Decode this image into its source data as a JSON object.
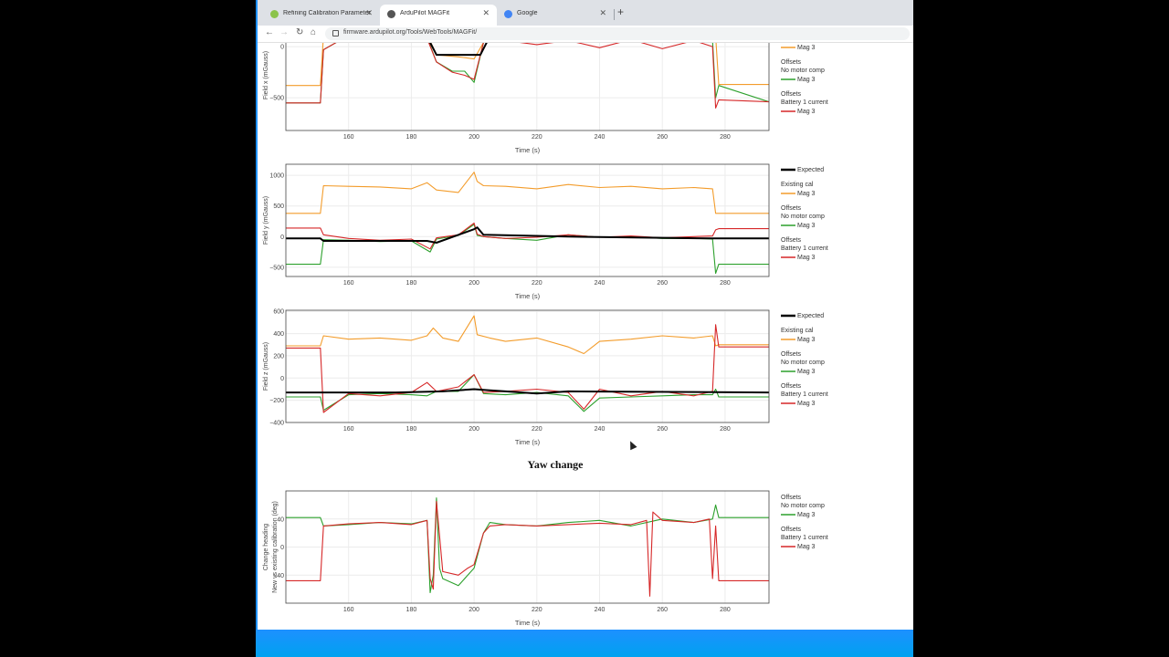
{
  "browser": {
    "tabs": [
      {
        "title": "Refining Calibration Parameters",
        "active": false,
        "favicon": "ardupilot-icon",
        "favicon_color": "#8bc34a"
      },
      {
        "title": "ArduPilot MAGFit",
        "active": true,
        "favicon": "ardupilot-icon",
        "favicon_color": "#555555"
      },
      {
        "title": "Google",
        "active": false,
        "favicon": "google-icon",
        "favicon_color": "#4285f4"
      }
    ],
    "new_tab_label": "+",
    "url": "firmware.ardupilot.org/Tools/WebTools/MAGFit/"
  },
  "section_title": "Yaw change",
  "colors": {
    "expected": "#000000",
    "existing_cal": "#f39c2b",
    "no_motor_comp": "#2ca02c",
    "battery_current": "#d62728"
  },
  "legend": {
    "expected": "Expected",
    "existing_cal": "Existing cal",
    "offsets": "Offsets",
    "no_motor_comp": "No motor comp",
    "battery_current": "Battery 1 current",
    "mag": "Mag 3"
  },
  "chart_data": [
    {
      "type": "line",
      "ylabel": "Field x (mGauss)",
      "xlabel": "Time (s)",
      "xlim": [
        140,
        294
      ],
      "ylim": [
        -820,
        260
      ],
      "x_ticks": [
        160,
        180,
        200,
        220,
        240,
        260,
        280
      ],
      "y_ticks": [
        {
          "v": 0,
          "label": "0"
        },
        {
          "v": -500,
          "label": "−500"
        }
      ],
      "series": [
        {
          "key": "existing_cal",
          "x": [
            140,
            151,
            152,
            160,
            170,
            180,
            185,
            188,
            195,
            200,
            203,
            205,
            220,
            240,
            260,
            276,
            277,
            278,
            294
          ],
          "y": [
            -380,
            -380,
            110,
            110,
            100,
            110,
            120,
            -80,
            -100,
            -120,
            40,
            80,
            70,
            60,
            90,
            70,
            100,
            -370,
            -370
          ]
        },
        {
          "key": "no_motor_comp",
          "x": [
            140,
            151,
            152,
            160,
            170,
            180,
            185,
            188,
            193,
            197,
            200,
            203,
            205,
            220,
            240,
            260,
            276,
            277,
            278,
            294
          ],
          "y": [
            -550,
            -550,
            -30,
            110,
            100,
            110,
            90,
            -150,
            -240,
            -240,
            -350,
            40,
            80,
            60,
            50,
            80,
            60,
            -500,
            -380,
            -540
          ]
        },
        {
          "key": "battery_current",
          "x": [
            140,
            151,
            152,
            160,
            170,
            180,
            185,
            188,
            193,
            197,
            200,
            203,
            205,
            220,
            230,
            240,
            250,
            260,
            270,
            276,
            277,
            278,
            294
          ],
          "y": [
            -550,
            -550,
            -30,
            110,
            100,
            110,
            80,
            -150,
            -250,
            -280,
            -320,
            40,
            80,
            20,
            60,
            -10,
            70,
            -20,
            60,
            0,
            -600,
            -520,
            -540
          ]
        },
        {
          "key": "expected",
          "x": [
            140,
            151,
            152,
            185,
            188,
            202,
            205,
            294
          ],
          "y": [
            110,
            110,
            100,
            100,
            -80,
            -80,
            100,
            100
          ]
        }
      ]
    },
    {
      "type": "line",
      "ylabel": "Field y (mGauss)",
      "xlabel": "Time (s)",
      "xlim": [
        140,
        294
      ],
      "ylim": [
        -650,
        1180
      ],
      "x_ticks": [
        160,
        180,
        200,
        220,
        240,
        260,
        280
      ],
      "y_ticks": [
        {
          "v": 1000,
          "label": "1000"
        },
        {
          "v": 500,
          "label": "500"
        },
        {
          "v": 0,
          "label": "0"
        },
        {
          "v": -500,
          "label": "−500"
        }
      ],
      "series": [
        {
          "key": "existing_cal",
          "x": [
            140,
            151,
            152,
            160,
            170,
            180,
            185,
            188,
            195,
            200,
            201,
            203,
            210,
            220,
            230,
            240,
            250,
            260,
            270,
            276,
            277,
            294
          ],
          "y": [
            380,
            380,
            830,
            820,
            810,
            780,
            880,
            760,
            720,
            1050,
            900,
            830,
            820,
            780,
            850,
            800,
            820,
            780,
            800,
            780,
            380,
            380
          ]
        },
        {
          "key": "no_motor_comp",
          "x": [
            140,
            151,
            152,
            160,
            170,
            180,
            186,
            188,
            195,
            200,
            201,
            203,
            210,
            220,
            230,
            240,
            250,
            260,
            270,
            276,
            277,
            278,
            294
          ],
          "y": [
            -450,
            -450,
            -50,
            -60,
            -80,
            -70,
            -250,
            -40,
            20,
            200,
            20,
            0,
            -30,
            -60,
            30,
            -10,
            0,
            -30,
            -30,
            -40,
            -600,
            -450,
            -450
          ]
        },
        {
          "key": "battery_current",
          "x": [
            140,
            151,
            152,
            160,
            170,
            180,
            186,
            188,
            195,
            200,
            201,
            203,
            210,
            220,
            230,
            240,
            250,
            260,
            270,
            276,
            277,
            278,
            294
          ],
          "y": [
            140,
            140,
            30,
            -30,
            -60,
            -40,
            -200,
            -20,
            30,
            220,
            40,
            0,
            -30,
            -10,
            30,
            -10,
            10,
            -20,
            0,
            10,
            110,
            130,
            130
          ]
        },
        {
          "key": "expected",
          "x": [
            140,
            151,
            152,
            185,
            188,
            200,
            201,
            203,
            230,
            276,
            294
          ],
          "y": [
            -30,
            -30,
            -70,
            -70,
            -100,
            120,
            150,
            30,
            0,
            -30,
            -30
          ]
        }
      ]
    },
    {
      "type": "line",
      "ylabel": "Field z (mGauss)",
      "xlabel": "Time (s)",
      "xlim": [
        140,
        294
      ],
      "ylim": [
        -400,
        610
      ],
      "x_ticks": [
        160,
        180,
        200,
        220,
        240,
        260,
        280
      ],
      "y_ticks": [
        {
          "v": 600,
          "label": "600"
        },
        {
          "v": 400,
          "label": "400"
        },
        {
          "v": 200,
          "label": "200"
        },
        {
          "v": 0,
          "label": "0"
        },
        {
          "v": -200,
          "label": "−200"
        },
        {
          "v": -400,
          "label": "−400"
        }
      ],
      "series": [
        {
          "key": "existing_cal",
          "x": [
            140,
            151,
            152,
            160,
            170,
            180,
            185,
            187,
            190,
            195,
            200,
            201,
            205,
            210,
            220,
            230,
            235,
            240,
            250,
            260,
            270,
            276,
            277,
            278,
            294
          ],
          "y": [
            290,
            290,
            380,
            350,
            360,
            340,
            380,
            450,
            360,
            330,
            560,
            390,
            360,
            330,
            360,
            280,
            220,
            330,
            350,
            380,
            360,
            380,
            290,
            300,
            300
          ]
        },
        {
          "key": "no_motor_comp",
          "x": [
            140,
            151,
            152,
            160,
            170,
            180,
            185,
            188,
            195,
            200,
            203,
            210,
            220,
            230,
            235,
            240,
            250,
            260,
            270,
            276,
            277,
            278,
            294
          ],
          "y": [
            -170,
            -170,
            -290,
            -150,
            -140,
            -150,
            -160,
            -120,
            -120,
            30,
            -140,
            -150,
            -130,
            -160,
            -300,
            -180,
            -170,
            -160,
            -150,
            -150,
            -100,
            -170,
            -170
          ]
        },
        {
          "key": "battery_current",
          "x": [
            140,
            151,
            152,
            160,
            170,
            180,
            185,
            188,
            195,
            200,
            203,
            210,
            220,
            230,
            235,
            240,
            250,
            260,
            270,
            276,
            277,
            278,
            294
          ],
          "y": [
            270,
            270,
            -310,
            -140,
            -160,
            -130,
            -40,
            -120,
            -80,
            30,
            -130,
            -120,
            -100,
            -130,
            -280,
            -100,
            -160,
            -120,
            -160,
            -120,
            480,
            280,
            280
          ]
        },
        {
          "key": "expected",
          "x": [
            140,
            151,
            152,
            175,
            190,
            200,
            205,
            210,
            220,
            230,
            294
          ],
          "y": [
            -130,
            -130,
            -130,
            -130,
            -120,
            -100,
            -110,
            -120,
            -140,
            -120,
            -130
          ]
        }
      ]
    },
    {
      "type": "line",
      "ylabel": "Change heading",
      "ylabel2": "New vs existing calibration (deg)",
      "xlabel": "Time (s)",
      "xlim": [
        140,
        294
      ],
      "ylim": [
        -80,
        80
      ],
      "x_ticks": [
        160,
        180,
        200,
        220,
        240,
        260,
        280
      ],
      "y_ticks": [
        {
          "v": 40,
          "label": "40"
        },
        {
          "v": 0,
          "label": "0"
        },
        {
          "v": -40,
          "label": "−40"
        }
      ],
      "series": [
        {
          "key": "no_motor_comp",
          "x": [
            140,
            151,
            152,
            160,
            170,
            180,
            185,
            186,
            187,
            188,
            189,
            190,
            195,
            198,
            200,
            203,
            205,
            210,
            220,
            230,
            240,
            250,
            260,
            270,
            276,
            277,
            278,
            294
          ],
          "y": [
            42,
            42,
            30,
            32,
            35,
            33,
            38,
            -65,
            -40,
            70,
            -30,
            -45,
            -55,
            -40,
            -30,
            20,
            35,
            32,
            30,
            35,
            38,
            30,
            40,
            35,
            40,
            60,
            42,
            42
          ]
        },
        {
          "key": "battery_current",
          "x": [
            140,
            151,
            152,
            160,
            170,
            180,
            185,
            186,
            187,
            188,
            190,
            195,
            198,
            200,
            203,
            205,
            210,
            220,
            230,
            240,
            250,
            255,
            256,
            257,
            260,
            270,
            275,
            276,
            277,
            278,
            294
          ],
          "y": [
            -48,
            -48,
            30,
            33,
            35,
            32,
            38,
            -45,
            -60,
            65,
            -35,
            -40,
            -30,
            -25,
            20,
            30,
            32,
            30,
            32,
            34,
            32,
            38,
            -70,
            50,
            38,
            35,
            40,
            -45,
            30,
            -48,
            -48
          ]
        }
      ]
    }
  ]
}
